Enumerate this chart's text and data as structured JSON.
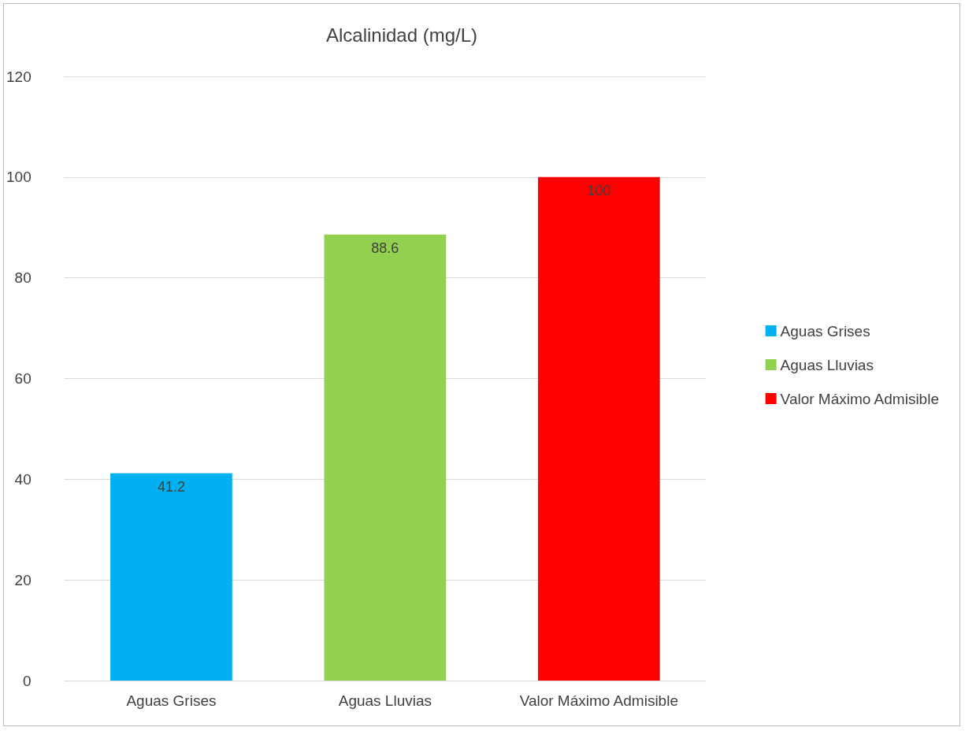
{
  "chart_data": {
    "type": "bar",
    "title": "Alcalinidad (mg/L)",
    "categories": [
      "Aguas Grises",
      "Aguas Lluvias",
      "Valor Máximo Admisible"
    ],
    "series": [
      {
        "name": "Aguas Grises",
        "color": "#00b0f0",
        "values": [
          41.2,
          null,
          null
        ]
      },
      {
        "name": "Aguas Lluvias",
        "color": "#92d050",
        "values": [
          null,
          88.6,
          null
        ]
      },
      {
        "name": "Valor Máximo Admisible",
        "color": "#ff0000",
        "values": [
          null,
          null,
          100
        ]
      }
    ],
    "ylim": [
      0,
      120
    ],
    "yticks": [
      0,
      20,
      40,
      60,
      80,
      100,
      120
    ],
    "grid": "y",
    "legend": "right",
    "data_labels": true
  }
}
